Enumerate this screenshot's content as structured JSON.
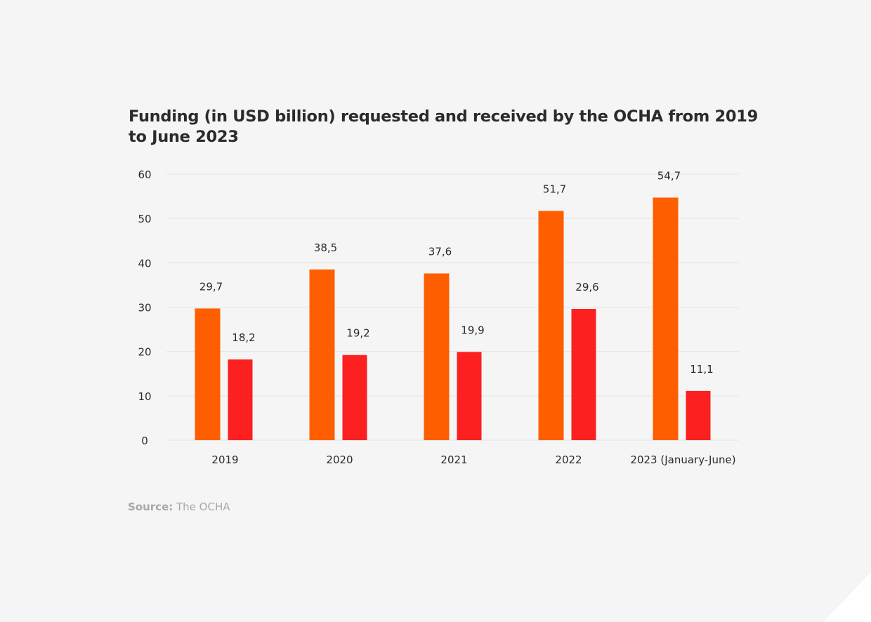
{
  "title": "Funding (in USD billion) requested and received by the OCHA from 2019 to June 2023",
  "source": {
    "label": "Source:",
    "text": " The OCHA"
  },
  "colors": {
    "requested": "#ff5e00",
    "received": "#fc2020",
    "grid": "#e4e4e4",
    "text": "#2b2b2b",
    "background": "#f5f5f5"
  },
  "chart_data": {
    "type": "bar",
    "title": "Funding (in USD billion) requested and received by the OCHA from 2019 to June 2023",
    "categories": [
      "2019",
      "2020",
      "2021",
      "2022",
      "2023 (January-June)"
    ],
    "series": [
      {
        "values": [
          29.7,
          38.5,
          37.6,
          51.7,
          54.7
        ],
        "labels": [
          "29,7",
          "38,5",
          "37,6",
          "51,7",
          "54,7"
        ],
        "color": "#ff5e00"
      },
      {
        "values": [
          18.2,
          19.2,
          19.9,
          29.6,
          11.1
        ],
        "labels": [
          "18,2",
          "19,2",
          "19,9",
          "29,6",
          "11,1"
        ],
        "color": "#fc2020"
      }
    ],
    "yticks": [
      "0",
      "10",
      "20",
      "30",
      "40",
      "50",
      "60"
    ],
    "ylim": [
      0,
      60
    ],
    "grid": true,
    "legend": "none"
  }
}
